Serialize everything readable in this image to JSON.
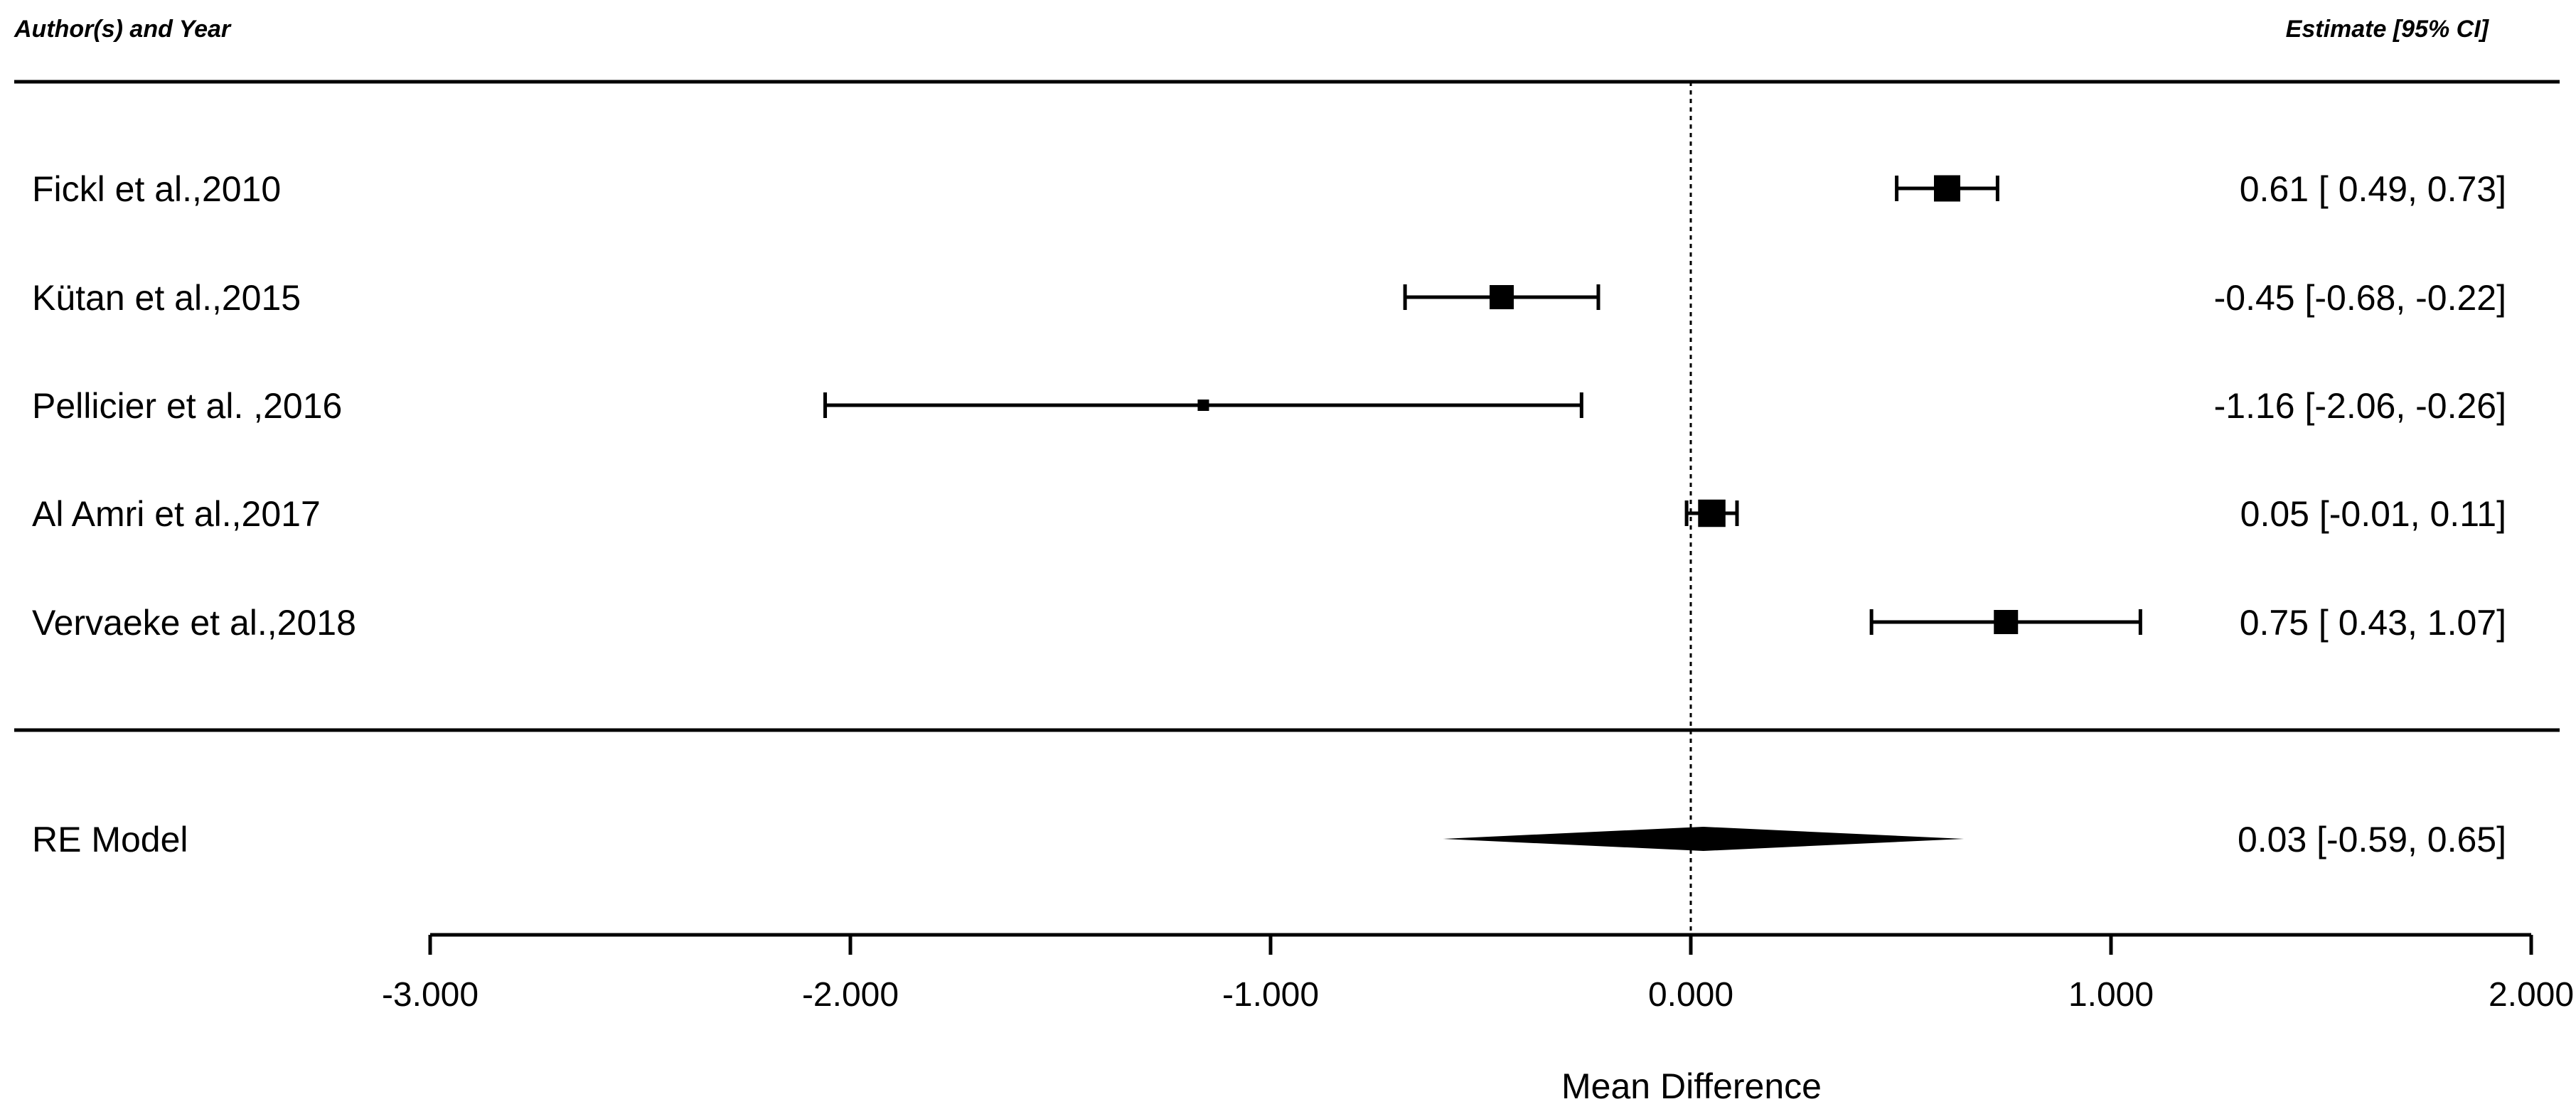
{
  "chart_data": {
    "type": "forest",
    "header_left": "Author(s) and Year",
    "header_right": "Estimate [95% CI]",
    "xlabel": "Mean Difference",
    "xlim": [
      -3.0,
      2.0
    ],
    "reference_line": 0,
    "ticks": [
      -3,
      -2,
      -1,
      0,
      1,
      2
    ],
    "tick_labels": [
      "-3.000",
      "-2.000",
      "-1.000",
      "0.000",
      "1.000",
      "2.000"
    ],
    "studies": [
      {
        "label": "Fickl et al.,2010",
        "estimate": 0.61,
        "lower": 0.49,
        "upper": 0.73,
        "text": "0.61 [ 0.49,  0.73]",
        "weight": 0.9
      },
      {
        "label": "Kütan et al.,2015",
        "estimate": -0.45,
        "lower": -0.68,
        "upper": -0.22,
        "text": "-0.45 [-0.68, -0.22]",
        "weight": 0.8
      },
      {
        "label": "Pellicier et al. ,2016",
        "estimate": -1.16,
        "lower": -2.06,
        "upper": -0.26,
        "text": "-1.16 [-2.06, -0.26]",
        "weight": 0.2
      },
      {
        "label": "Al Amri et al.,2017",
        "estimate": 0.05,
        "lower": -0.01,
        "upper": 0.11,
        "text": "0.05 [-0.01,  0.11]",
        "weight": 0.95
      },
      {
        "label": "Vervaeke et al.,2018",
        "estimate": 0.75,
        "lower": 0.43,
        "upper": 1.07,
        "text": "0.75 [ 0.43,  1.07]",
        "weight": 0.8
      }
    ],
    "summary": {
      "label": "RE Model",
      "estimate": 0.03,
      "lower": -0.59,
      "upper": 0.65,
      "text": "0.03 [-0.59,  0.65]"
    }
  }
}
